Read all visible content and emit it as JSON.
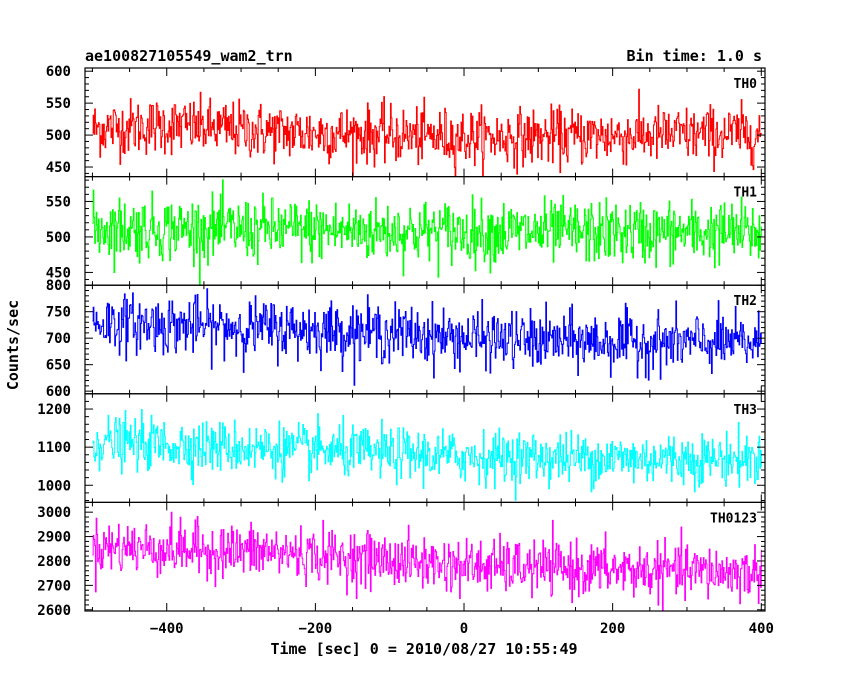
{
  "chart_data": {
    "type": "line",
    "title_left": "ae100827105549_wam2_trn",
    "title_right": "Bin time: 1.0 s",
    "xlabel": "Time [sec] 0 = 2010/08/27 10:55:49",
    "ylabel": "Counts/sec",
    "xlim": [
      -510,
      405
    ],
    "data_x_range": [
      -500,
      400
    ],
    "x_ticks": [
      -400,
      -200,
      0,
      200,
      400
    ],
    "x_tick_labels": [
      "−400",
      "−200",
      "0",
      "200",
      "400"
    ],
    "grid": false,
    "panels": [
      {
        "label": "TH0",
        "color": "#ff0000",
        "ylim": [
          435,
          605
        ],
        "y_ticks": [
          450,
          500,
          550,
          600
        ],
        "y_tick_labels": [
          "450",
          "500",
          "550",
          "600"
        ],
        "trend": {
          "t": [
            -500,
            -400,
            -250,
            -100,
            0,
            100,
            250,
            400
          ],
          "v": [
            510,
            515,
            505,
            500,
            496,
            497,
            500,
            502
          ]
        },
        "noise_sd": 22
      },
      {
        "label": "TH1",
        "color": "#00ff00",
        "ylim": [
          432,
          585
        ],
        "y_ticks": [
          450,
          500,
          550
        ],
        "y_tick_labels": [
          "450",
          "500",
          "550"
        ],
        "trend": {
          "t": [
            -500,
            -250,
            0,
            250,
            400
          ],
          "v": [
            513,
            510,
            507,
            506,
            506
          ]
        },
        "noise_sd": 22
      },
      {
        "label": "TH2",
        "color": "#0000ff",
        "ylim": [
          595,
          800
        ],
        "y_ticks": [
          600,
          650,
          700,
          750,
          800
        ],
        "y_tick_labels": [
          "600",
          "650",
          "700",
          "750",
          "800"
        ],
        "trend": {
          "t": [
            -500,
            -250,
            -100,
            0,
            100,
            250,
            400
          ],
          "v": [
            730,
            718,
            710,
            700,
            695,
            692,
            690
          ]
        },
        "noise_sd": 27
      },
      {
        "label": "TH3",
        "color": "#00ffff",
        "ylim": [
          955,
          1240
        ],
        "y_ticks": [
          1000,
          1100,
          1200
        ],
        "y_tick_labels": [
          "1000",
          "1100",
          "1200"
        ],
        "trend": {
          "t": [
            -500,
            -250,
            0,
            250,
            400
          ],
          "v": [
            1115,
            1095,
            1075,
            1070,
            1068
          ]
        },
        "noise_sd": 34
      },
      {
        "label": "TH0123",
        "color": "#ff00ff",
        "ylim": [
          2595,
          3040
        ],
        "y_ticks": [
          2600,
          2700,
          2800,
          2900,
          3000
        ],
        "y_tick_labels": [
          "2600",
          "2700",
          "2800",
          "2900",
          "3000"
        ],
        "trend": {
          "t": [
            -500,
            -250,
            0,
            250,
            400
          ],
          "v": [
            2860,
            2835,
            2780,
            2760,
            2750
          ]
        },
        "noise_sd": 55
      }
    ]
  }
}
